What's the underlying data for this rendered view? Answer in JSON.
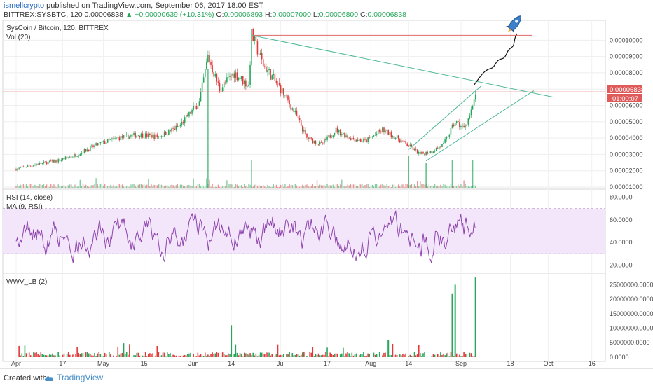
{
  "header": {
    "author": "ismellcrypto",
    "published": "published on TradingView.com, September 06, 2017 18:00 EST",
    "symbol": "BITTREX:SYSBTC, 120",
    "last": "0.00006838",
    "change": "▲ +0.00000639 (+10.31%)",
    "open_label": "O:",
    "open": "0.00006893",
    "high_label": "H:",
    "high": "0.00007000",
    "low_label": "L:",
    "low": "0.00006800",
    "close_label": "C:",
    "close": "0.00006838"
  },
  "footer": {
    "created_with": "Created with",
    "brand": "TradingView"
  },
  "colors": {
    "up": "#26a65b",
    "down": "#e23a3a",
    "rsi": "#8e44ad",
    "trend": "#4fb89a",
    "price_line": "#e06a6a",
    "tag": "#e05a5a",
    "rsi_band": "#f3e6fb"
  },
  "chart_data": [
    {
      "type": "candlestick",
      "title": "SysCoin / Bitcoin, 120, BITTREX",
      "subtitle": "Vol (20)",
      "x_ticks": [
        "Apr",
        "17",
        "May",
        "15",
        "Jun",
        "14",
        "Jul",
        "17",
        "Aug",
        "14",
        "Sep",
        "18",
        "Oct",
        "16"
      ],
      "y_ticks": [
        "0.00001000",
        "0.00002000",
        "0.00003000",
        "0.00004000",
        "0.00005000",
        "0.00006000",
        "0.00007000",
        "0.00008000",
        "0.00009000",
        "0.00010000"
      ],
      "ylim": [
        1e-05,
        0.000104
      ],
      "price_path": [
        [
          "Apr 1",
          2.1e-05
        ],
        [
          "Apr 8",
          2.4e-05
        ],
        [
          "Apr 15",
          2.6e-05
        ],
        [
          "Apr 22",
          3e-05
        ],
        [
          "Apr 29",
          3.6e-05
        ],
        [
          "May 6",
          4e-05
        ],
        [
          "May 13",
          4.2e-05
        ],
        [
          "May 20",
          4.1e-05
        ],
        [
          "May 27",
          4.7e-05
        ],
        [
          "Jun 3",
          6.2e-05
        ],
        [
          "Jun 6",
          9e-05
        ],
        [
          "Jun 10",
          7e-05
        ],
        [
          "Jun 15",
          8e-05
        ],
        [
          "Jun 20",
          7.2e-05
        ],
        [
          "Jun 21",
          0.000103
        ],
        [
          "Jun 25",
          8.5e-05
        ],
        [
          "Jul 1",
          7e-05
        ],
        [
          "Jul 6",
          5.5e-05
        ],
        [
          "Jul 10",
          4e-05
        ],
        [
          "Jul 15",
          3.6e-05
        ],
        [
          "Jul 20",
          4.5e-05
        ],
        [
          "Jul 25",
          4e-05
        ],
        [
          "Jul 30",
          3.8e-05
        ],
        [
          "Aug 5",
          4.5e-05
        ],
        [
          "Aug 10",
          4e-05
        ],
        [
          "Aug 15",
          3.4e-05
        ],
        [
          "Aug 18",
          3e-05
        ],
        [
          "Aug 22",
          3.2e-05
        ],
        [
          "Aug 26",
          3.6e-05
        ],
        [
          "Aug 30",
          5e-05
        ],
        [
          "Sep 2",
          4.6e-05
        ],
        [
          "Sep 5",
          5.8e-05
        ],
        [
          "Sep 6",
          6.8e-05
        ]
      ],
      "last_price": "0.00006838",
      "countdown": "01:00:07",
      "annotations": {
        "horizontal_line_price": 0.000103,
        "descending_trendline": [
          [
            "Jun 21",
            0.000103
          ],
          [
            "Oct 3",
            6.5e-05
          ]
        ],
        "channel_lower": [
          [
            "Aug 20",
            2.6e-05
          ],
          [
            "Sep 26",
            6.9e-05
          ]
        ],
        "channel_upper": [
          [
            "Aug 14",
            3.3e-05
          ],
          [
            "Sep 8",
            7.2e-05
          ]
        ],
        "projection": "wavy arrow to a rocket near the top",
        "icon": "rocket-icon"
      }
    },
    {
      "type": "line",
      "title": "RSI (14, close)",
      "subtitle": "MA (9, RSI)",
      "y_ticks": [
        "20.0000",
        "40.0000",
        "60.0000",
        "80.0000"
      ],
      "ylim": [
        14,
        86
      ],
      "band": [
        30,
        70
      ]
    },
    {
      "type": "bar",
      "title": "WWV_LB (2)",
      "y_ticks": [
        "0.0000",
        "5000000.0000",
        "10000000.0000",
        "15000000.0000",
        "20000000.0000",
        "25000000.0000"
      ],
      "ylim": [
        -1000000,
        28000000
      ],
      "spikes": [
        [
          "Jun 14",
          11000000
        ],
        [
          "Aug 7",
          6000000
        ],
        [
          "Aug 29",
          22000000
        ],
        [
          "Aug 30",
          25000000
        ],
        [
          "Sep 6",
          27500000
        ]
      ]
    }
  ]
}
